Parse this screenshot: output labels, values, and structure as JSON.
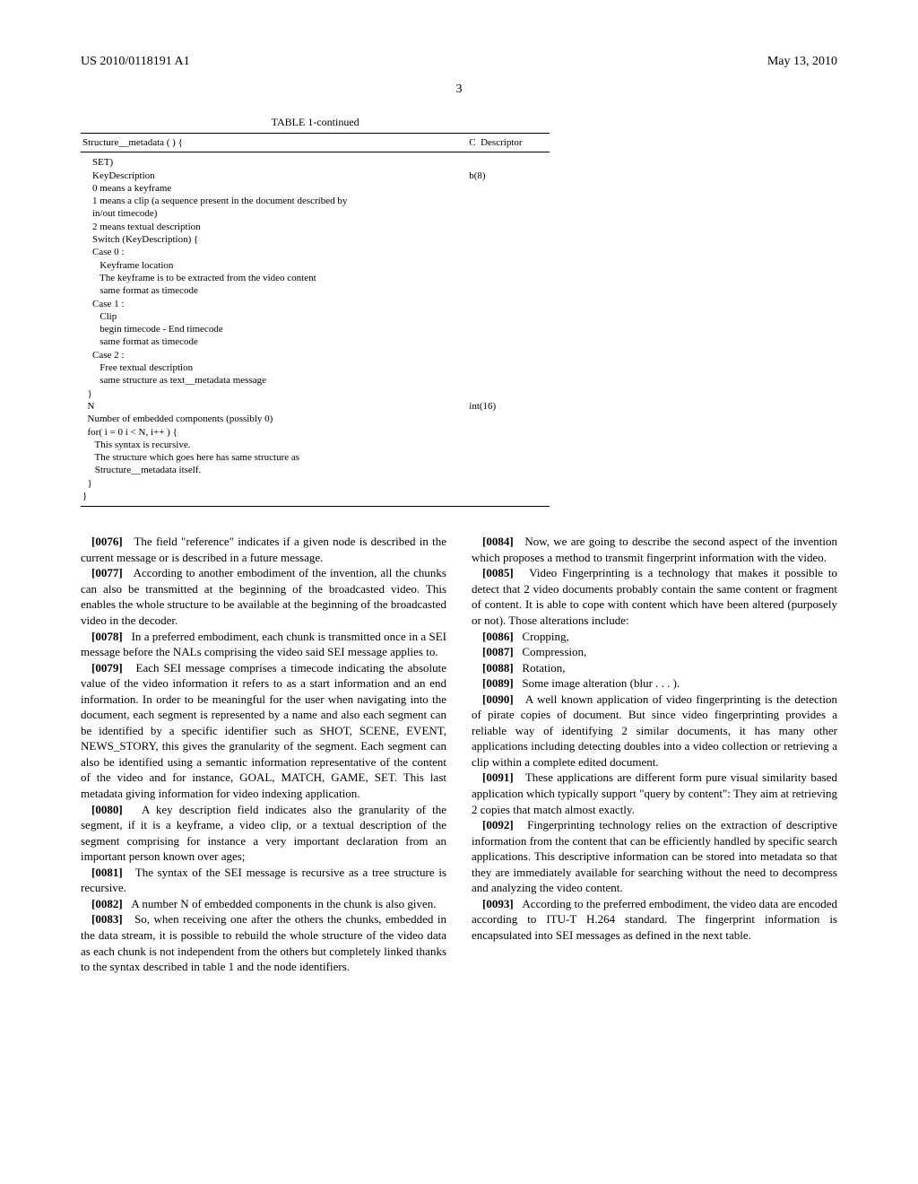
{
  "header": {
    "left": "US 2010/0118191 A1",
    "right": "May 13, 2010"
  },
  "page_number": "3",
  "table": {
    "title": "TABLE 1-continued",
    "head_left": "Structure__metadata ( ) {",
    "head_c": "C",
    "head_desc": "Descriptor",
    "lines": [
      {
        "code": "    SET)",
        "desc": ""
      },
      {
        "code": "    KeyDescription",
        "desc": "b(8)"
      },
      {
        "code": "    0 means a keyframe",
        "desc": ""
      },
      {
        "code": "    1 means a clip (a sequence present in the document described by",
        "desc": ""
      },
      {
        "code": "    in/out timecode)",
        "desc": ""
      },
      {
        "code": "    2 means textual description",
        "desc": ""
      },
      {
        "code": "    Switch (KeyDescription) {",
        "desc": ""
      },
      {
        "code": "    Case 0 :",
        "desc": ""
      },
      {
        "code": "       Keyframe location",
        "desc": ""
      },
      {
        "code": "       The keyframe is to be extracted from the video content",
        "desc": ""
      },
      {
        "code": "       same format as timecode",
        "desc": ""
      },
      {
        "code": "    Case 1 :",
        "desc": ""
      },
      {
        "code": "       Clip",
        "desc": ""
      },
      {
        "code": "       begin timecode - End timecode",
        "desc": ""
      },
      {
        "code": "       same format as timecode",
        "desc": ""
      },
      {
        "code": "    Case 2 :",
        "desc": ""
      },
      {
        "code": "       Free textual description",
        "desc": ""
      },
      {
        "code": "       same structure as text__metadata message",
        "desc": ""
      },
      {
        "code": "  }",
        "desc": ""
      },
      {
        "code": "  N",
        "desc": "int(16)"
      },
      {
        "code": "  Number of embedded components (possibly 0)",
        "desc": ""
      },
      {
        "code": "  for( i = 0 i < N, i++ ) {",
        "desc": ""
      },
      {
        "code": "     This syntax is recursive.",
        "desc": ""
      },
      {
        "code": "     The structure which goes here has same structure as",
        "desc": ""
      },
      {
        "code": "     Structure__metadata itself.",
        "desc": ""
      },
      {
        "code": "  }",
        "desc": ""
      },
      {
        "code": "}",
        "desc": ""
      }
    ]
  },
  "left_col": [
    {
      "num": "[0076]",
      "text": "The field \"reference\" indicates if a given node is described in the current message or is described in a future message."
    },
    {
      "num": "[0077]",
      "text": "According to another embodiment of the invention, all the chunks can also be transmitted at the beginning of the broadcasted video. This enables the whole structure to be available at the beginning of the broadcasted video in the decoder."
    },
    {
      "num": "[0078]",
      "text": "In a preferred embodiment, each chunk is transmitted once in a SEI message before the NALs comprising the video said SEI message applies to."
    },
    {
      "num": "[0079]",
      "text": "Each SEI message comprises a timecode indicating the absolute value of the video information it refers to as a start information and an end information. In order to be meaningful for the user when navigating into the document, each segment is represented by a name and also each segment can be identified by a specific identifier such as SHOT, SCENE, EVENT, NEWS_STORY, this gives the granularity of the segment. Each segment can also be identified using a semantic information representative of the content of the video and for instance, GOAL, MATCH, GAME, SET. This last metadata giving information for video indexing application."
    },
    {
      "num": "[0080]",
      "text": "A key description field indicates also the granularity of the segment, if it is a keyframe, a video clip, or a textual description of the segment comprising for instance a very important declaration from an important person known over ages;"
    },
    {
      "num": "[0081]",
      "text": "The syntax of the SEI message is recursive as a tree structure is recursive."
    },
    {
      "num": "[0082]",
      "text": "A number N of embedded components in the chunk is also given."
    },
    {
      "num": "[0083]",
      "text": "So, when receiving one after the others the chunks, embedded in the data stream, it is possible to rebuild the whole structure of the video data as each chunk is not independent from the others but completely linked thanks to the syntax described in table 1 and the node identifiers."
    }
  ],
  "right_col": [
    {
      "num": "[0084]",
      "text": "Now, we are going to describe the second aspect of the invention which proposes a method to transmit fingerprint information with the video."
    },
    {
      "num": "[0085]",
      "text": "Video Fingerprinting is a technology that makes it possible to detect that 2 video documents probably contain the same content or fragment of content. It is able to cope with content which have been altered (purposely or not). Those alterations include:"
    },
    {
      "num": "[0086]",
      "text": "Cropping,"
    },
    {
      "num": "[0087]",
      "text": "Compression,"
    },
    {
      "num": "[0088]",
      "text": "Rotation,"
    },
    {
      "num": "[0089]",
      "text": "Some image alteration (blur . . . )."
    },
    {
      "num": "[0090]",
      "text": "A well known application of video fingerprinting is the detection of pirate copies of document. But since video fingerprinting provides a reliable way of identifying 2 similar documents, it has many other applications including detecting doubles into a video collection or retrieving a clip within a complete edited document."
    },
    {
      "num": "[0091]",
      "text": "These applications are different form pure visual similarity based application which typically support \"query by content\": They aim at retrieving 2 copies that match almost exactly."
    },
    {
      "num": "[0092]",
      "text": "Fingerprinting technology relies on the extraction of descriptive information from the content that can be efficiently handled by specific search applications. This descriptive information can be stored into metadata so that they are immediately available for searching without the need to decompress and analyzing the video content."
    },
    {
      "num": "[0093]",
      "text": "According to the preferred embodiment, the video data are encoded according to ITU-T H.264 standard. The fingerprint information is encapsulated into SEI messages as defined in the next table."
    }
  ]
}
